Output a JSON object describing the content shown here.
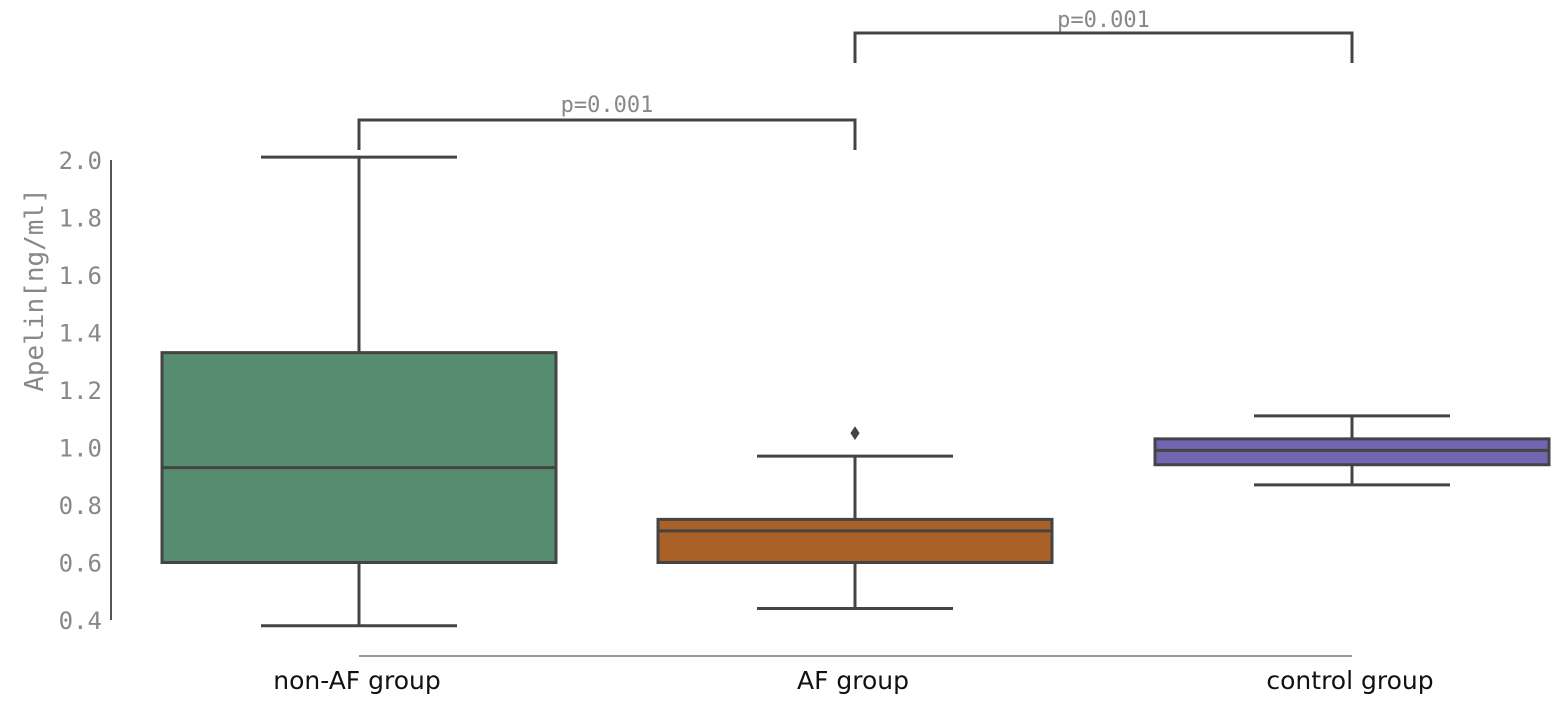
{
  "chart_data": {
    "type": "boxplot",
    "ylabel": "Apelin[ng/ml]",
    "ylim": [
      0.4,
      2.0
    ],
    "yticks": [
      "0.4",
      "0.6",
      "0.8",
      "1.0",
      "1.2",
      "1.4",
      "1.6",
      "1.8",
      "2.0"
    ],
    "grid": false,
    "categories": [
      "non-AF group",
      "AF group",
      "control group"
    ],
    "boxes": [
      {
        "category": "non-AF group",
        "min": 0.38,
        "q1": 0.6,
        "median": 0.93,
        "q3": 1.33,
        "max": 2.01,
        "outliers": [],
        "color": "#568c70"
      },
      {
        "category": "AF group",
        "min": 0.44,
        "q1": 0.6,
        "median": 0.71,
        "q3": 0.75,
        "max": 0.97,
        "outliers": [
          1.05
        ],
        "color": "#a96128"
      },
      {
        "category": "control group",
        "min": 0.87,
        "q1": 0.94,
        "median": 0.99,
        "q3": 1.03,
        "max": 1.11,
        "outliers": [],
        "color": "#7266b2"
      }
    ],
    "annotations": [
      {
        "from": "non-AF group",
        "to": "AF group",
        "label": "p=0.001"
      },
      {
        "from": "AF group",
        "to": "control group",
        "label": "p=0.001"
      }
    ]
  }
}
